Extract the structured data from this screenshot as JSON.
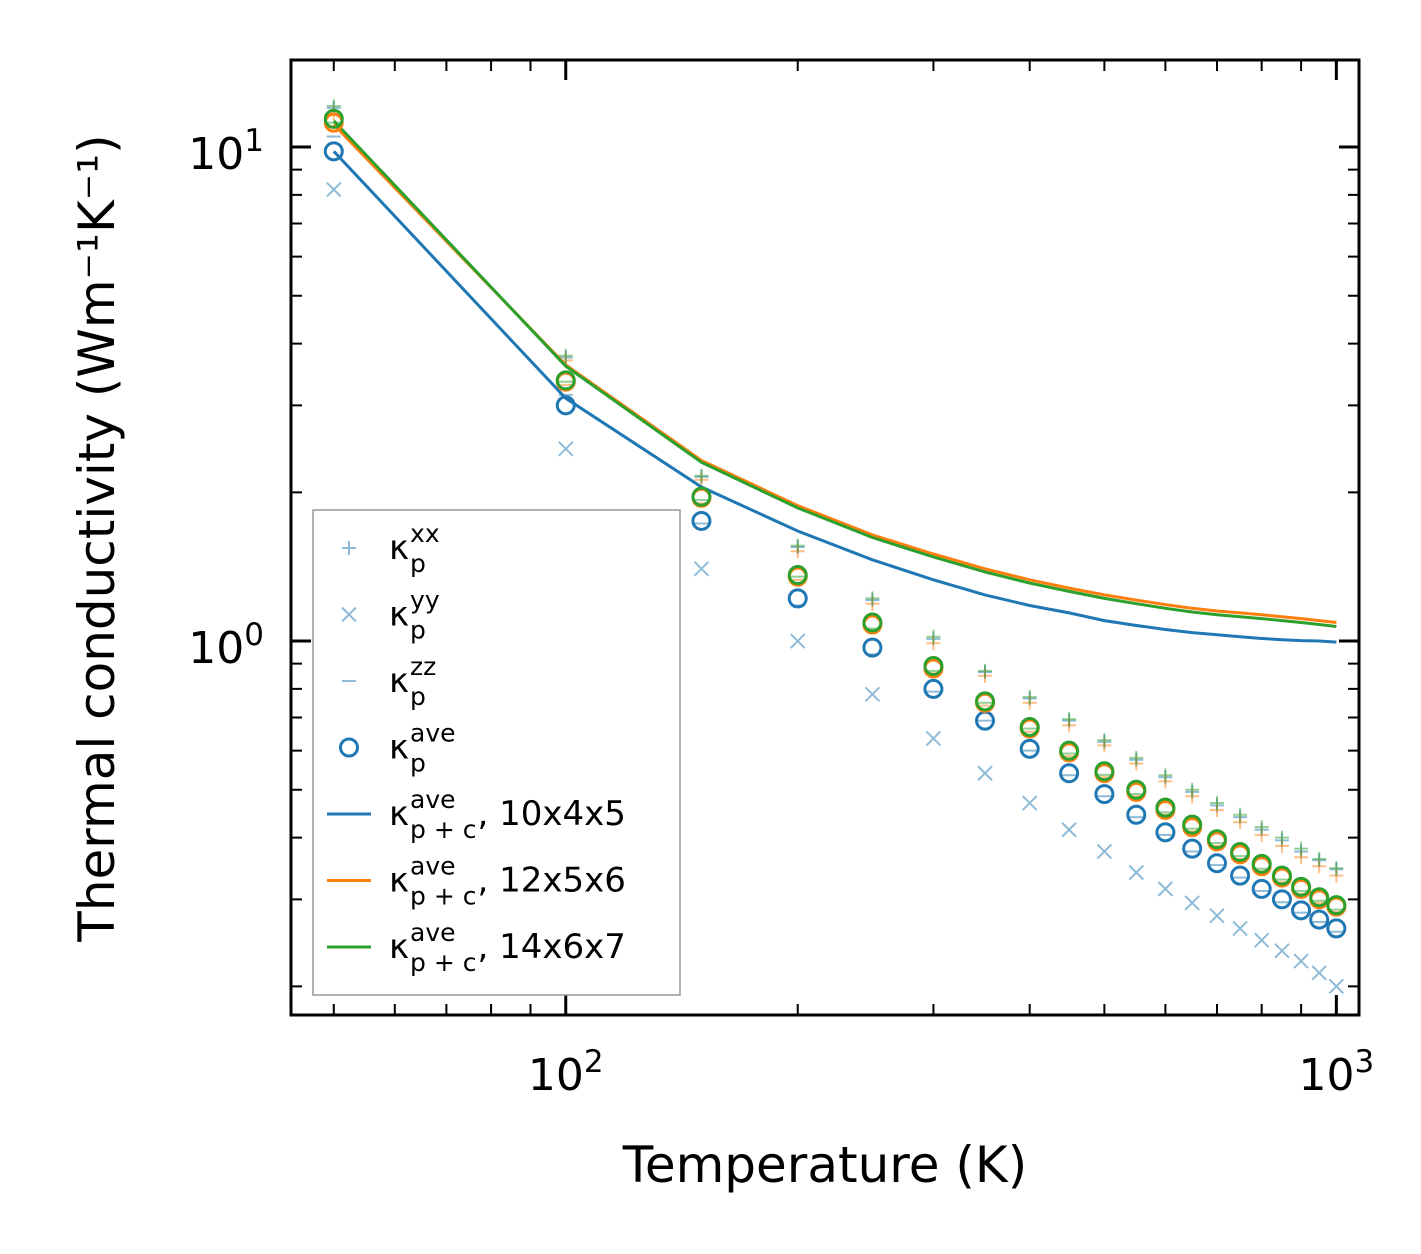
{
  "chart_data": {
    "type": "scatter",
    "title": "",
    "xlabel": "Temperature (K)",
    "ylabel": "Thermal conductivity (Wm⁻¹K⁻¹)",
    "xscale": "log",
    "yscale": "log",
    "xlim": [
      44,
      1070
    ],
    "ylim": [
      0.175,
      15
    ],
    "grid": false,
    "legend_position": "lower-left",
    "x_ticks": [
      {
        "value": 100,
        "base": "10",
        "exp": "2"
      },
      {
        "value": 1000,
        "base": "10",
        "exp": "3"
      }
    ],
    "y_ticks": [
      {
        "value": 1,
        "base": "10",
        "exp": "0"
      },
      {
        "value": 10,
        "base": "10",
        "exp": "1"
      }
    ],
    "x": [
      50,
      100,
      150,
      200,
      250,
      300,
      350,
      400,
      450,
      500,
      550,
      600,
      650,
      700,
      750,
      800,
      850,
      900,
      950,
      1000
    ],
    "series": [
      {
        "name": "κ_p^xx",
        "symbol": "κ",
        "sub": "p",
        "sup": "xx",
        "suffix": "",
        "kind": "marker",
        "marker": "plus",
        "color": "#1f77b4",
        "faded": true,
        "cell": "10x4x5",
        "values": [
          12.0,
          3.75,
          2.15,
          1.55,
          1.21,
          1.01,
          0.865,
          0.765,
          0.69,
          0.625,
          0.575,
          0.53,
          0.495,
          0.465,
          0.44,
          0.415,
          0.395,
          0.375,
          0.36,
          0.345
        ]
      },
      {
        "name": "κ_p^xx",
        "kind": "marker",
        "marker": "plus",
        "color": "#ff7f0e",
        "faded": true,
        "cell": "12x5x6",
        "legend": false,
        "values": [
          11.7,
          3.7,
          2.12,
          1.52,
          1.19,
          0.99,
          0.85,
          0.75,
          0.675,
          0.615,
          0.565,
          0.52,
          0.485,
          0.455,
          0.43,
          0.405,
          0.385,
          0.365,
          0.35,
          0.335
        ]
      },
      {
        "name": "κ_p^xx",
        "kind": "marker",
        "marker": "plus",
        "color": "#2ca02c",
        "faded": true,
        "cell": "14x6x7",
        "legend": false,
        "values": [
          12.1,
          3.78,
          2.16,
          1.56,
          1.22,
          1.02,
          0.87,
          0.77,
          0.695,
          0.63,
          0.58,
          0.535,
          0.5,
          0.47,
          0.445,
          0.42,
          0.4,
          0.38,
          0.362,
          0.347
        ]
      },
      {
        "name": "κ_p^yy",
        "symbol": "κ",
        "sub": "p",
        "sup": "yy",
        "suffix": "",
        "kind": "marker",
        "marker": "x",
        "color": "#1f77b4",
        "faded": true,
        "cell": "10x4x5",
        "values": [
          8.2,
          2.45,
          1.4,
          1.0,
          0.78,
          0.635,
          0.54,
          0.47,
          0.415,
          0.375,
          0.34,
          0.315,
          0.295,
          0.278,
          0.262,
          0.248,
          0.236,
          0.225,
          0.213,
          0.2
        ]
      },
      {
        "name": "κ_p^zz",
        "symbol": "κ",
        "sub": "p",
        "sup": "zz",
        "suffix": "",
        "kind": "marker",
        "marker": "dash",
        "color": "#1f77b4",
        "faded": true,
        "cell": "10x4x5",
        "values": [
          10.5,
          3.15,
          1.73,
          1.18,
          0.94,
          0.79,
          0.69,
          0.6,
          0.535,
          0.485,
          0.44,
          0.405,
          0.375,
          0.352,
          0.332,
          0.312,
          0.296,
          0.282,
          0.27,
          0.258
        ]
      },
      {
        "name": "κ_p^zz",
        "kind": "marker",
        "marker": "dash",
        "color": "#ff7f0e",
        "faded": true,
        "cell": "12x5x6",
        "legend": false,
        "values": [
          11.0,
          3.3,
          1.9,
          1.33,
          1.05,
          0.86,
          0.74,
          0.655,
          0.585,
          0.53,
          0.485,
          0.445,
          0.412,
          0.385,
          0.362,
          0.342,
          0.325,
          0.308,
          0.295,
          0.283
        ]
      },
      {
        "name": "κ_p^zz",
        "kind": "marker",
        "marker": "dash",
        "color": "#2ca02c",
        "faded": true,
        "cell": "14x6x7",
        "legend": false,
        "values": [
          11.2,
          3.35,
          1.93,
          1.35,
          1.06,
          0.87,
          0.75,
          0.665,
          0.592,
          0.536,
          0.49,
          0.45,
          0.417,
          0.39,
          0.367,
          0.346,
          0.329,
          0.312,
          0.298,
          0.286
        ]
      },
      {
        "name": "κ_p^ave",
        "symbol": "κ",
        "sub": "p",
        "sup": "ave",
        "suffix": "",
        "kind": "marker",
        "marker": "circle",
        "color": "#1f77b4",
        "cell": "10x4x5",
        "values": [
          9.8,
          3.0,
          1.75,
          1.22,
          0.97,
          0.8,
          0.69,
          0.605,
          0.54,
          0.49,
          0.445,
          0.41,
          0.38,
          0.355,
          0.335,
          0.315,
          0.3,
          0.285,
          0.273,
          0.262
        ]
      },
      {
        "name": "κ_p^ave",
        "kind": "marker",
        "marker": "circle",
        "color": "#ff7f0e",
        "cell": "12x5x6",
        "legend": false,
        "values": [
          11.2,
          3.35,
          1.95,
          1.35,
          1.08,
          0.88,
          0.75,
          0.665,
          0.595,
          0.54,
          0.495,
          0.455,
          0.42,
          0.393,
          0.37,
          0.35,
          0.332,
          0.315,
          0.3,
          0.29
        ]
      },
      {
        "name": "κ_p^ave",
        "kind": "marker",
        "marker": "circle",
        "color": "#2ca02c",
        "cell": "14x6x7",
        "legend": false,
        "values": [
          11.4,
          3.37,
          1.96,
          1.36,
          1.09,
          0.89,
          0.755,
          0.67,
          0.6,
          0.545,
          0.5,
          0.46,
          0.425,
          0.397,
          0.374,
          0.354,
          0.335,
          0.318,
          0.303,
          0.292
        ]
      },
      {
        "name": "κ_p+c^ave, 10x4x5",
        "symbol": "κ",
        "sub": "p + c",
        "sup": "ave",
        "suffix": ", 10x4x5",
        "kind": "line",
        "color": "#1f77b4",
        "cell": "10x4x5",
        "values": [
          9.8,
          3.1,
          2.05,
          1.67,
          1.46,
          1.33,
          1.24,
          1.18,
          1.14,
          1.1,
          1.075,
          1.055,
          1.04,
          1.03,
          1.02,
          1.012,
          1.006,
          1.002,
          1.0,
          0.995
        ]
      },
      {
        "name": "κ_p+c^ave, 12x5x6",
        "symbol": "κ",
        "sub": "p + c",
        "sup": "ave",
        "suffix": ", 12x5x6",
        "kind": "line",
        "color": "#ff7f0e",
        "cell": "12x5x6",
        "values": [
          11.1,
          3.62,
          2.32,
          1.88,
          1.64,
          1.5,
          1.4,
          1.33,
          1.28,
          1.24,
          1.21,
          1.185,
          1.165,
          1.15,
          1.14,
          1.13,
          1.12,
          1.11,
          1.1,
          1.09
        ]
      },
      {
        "name": "κ_p+c^ave, 14x6x7",
        "symbol": "κ",
        "sub": "p + c",
        "sup": "ave",
        "suffix": ", 14x6x7",
        "kind": "line",
        "color": "#2ca02c",
        "cell": "14x6x7",
        "values": [
          11.3,
          3.6,
          2.3,
          1.86,
          1.62,
          1.48,
          1.38,
          1.31,
          1.26,
          1.22,
          1.19,
          1.165,
          1.145,
          1.13,
          1.12,
          1.11,
          1.1,
          1.09,
          1.08,
          1.07
        ]
      }
    ]
  }
}
